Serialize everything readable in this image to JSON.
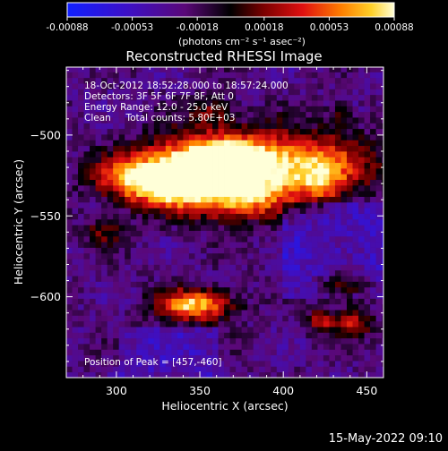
{
  "chart_data": {
    "type": "heatmap",
    "title": "Reconstructed RHESSI Image",
    "xlabel": "Heliocentric X (arcsec)",
    "ylabel": "Heliocentric Y (arcsec)",
    "xlim": [
      270,
      460
    ],
    "ylim": [
      -650,
      -458
    ],
    "x_ticks": [
      300,
      350,
      400,
      450
    ],
    "y_ticks": [
      -500,
      -550,
      -600
    ],
    "colorbar": {
      "range": [
        -0.00088,
        0.00088
      ],
      "tick_values": [
        -0.00088,
        -0.00053,
        -0.00018,
        0.00018,
        0.00053,
        0.00088
      ],
      "tick_labels": [
        "-0.00088",
        "-0.00053",
        "-0.00018",
        "0.00018",
        "0.00053",
        "0.00088"
      ],
      "unit_label": "(photons cm⁻² s⁻¹ asec⁻²)"
    },
    "annotations": [
      "18-Oct-2012 18:52:28.000 to 18:57:24.000",
      "Detectors: 3F 5F 6F 7F 8F, Att 0",
      "Energy Range: 12.0 - 25.0 keV",
      "Clean     Total counts: 5.80E+03"
    ],
    "peak_label": "Position of Peak = [457,-460]",
    "sources": [
      {
        "x": 392,
        "y": -518,
        "sx": 42,
        "sy": 14,
        "amp": 1.0
      },
      {
        "x": 355,
        "y": -523,
        "sx": 24,
        "sy": 15,
        "amp": 0.9
      },
      {
        "x": 328,
        "y": -529,
        "sx": 16,
        "sy": 11,
        "amp": 0.8
      },
      {
        "x": 303,
        "y": -527,
        "sx": 14,
        "sy": 9,
        "amp": 0.55
      },
      {
        "x": 375,
        "y": -542,
        "sx": 18,
        "sy": 8,
        "amp": 0.5
      },
      {
        "x": 347,
        "y": -605,
        "sx": 16,
        "sy": 7,
        "amp": 0.95
      },
      {
        "x": 437,
        "y": -593,
        "sx": 11,
        "sy": 6,
        "amp": 0.6
      },
      {
        "x": 441,
        "y": -616,
        "sx": 9,
        "sy": 6,
        "amp": 0.5
      },
      {
        "x": 422,
        "y": -615,
        "sx": 7,
        "sy": 5,
        "amp": 0.45
      },
      {
        "x": 424,
        "y": -530,
        "sx": 10,
        "sy": 9,
        "amp": 0.45
      },
      {
        "x": 358,
        "y": -484,
        "sx": 9,
        "sy": 6,
        "amp": 0.35
      },
      {
        "x": 434,
        "y": -488,
        "sx": 6,
        "sy": 6,
        "amp": 0.3
      },
      {
        "x": 293,
        "y": -560,
        "sx": 10,
        "sy": 6,
        "amp": 0.35
      }
    ]
  },
  "timestamp": "15-May-2022 09:10"
}
